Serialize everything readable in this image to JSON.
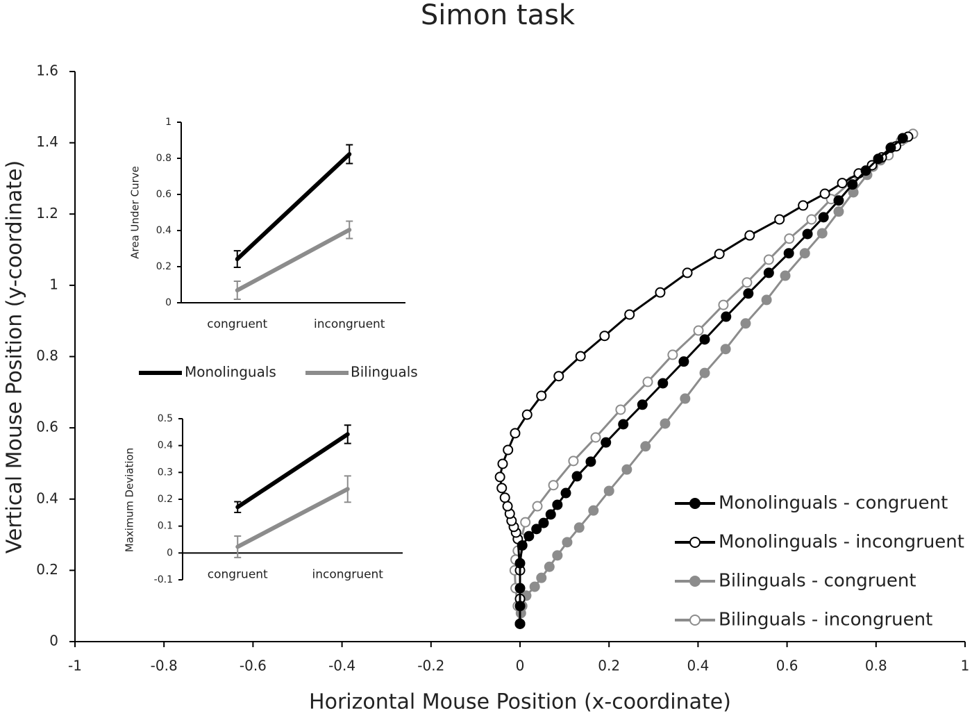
{
  "chart_data": [
    {
      "type": "line",
      "title": "Simon task",
      "xlabel": "Horizontal Mouse Position (x-coordinate)",
      "ylabel": "Vertical Mouse Position (y-coordinate)",
      "xlim": [
        -1,
        1
      ],
      "xticks": [
        -1,
        -0.8,
        -0.6,
        -0.4,
        -0.2,
        0,
        0.2,
        0.4,
        0.6,
        0.8,
        1
      ],
      "ylim": [
        0,
        1.6
      ],
      "yticks": [
        0,
        0.2,
        0.4,
        0.6,
        0.8,
        1,
        1.2,
        1.4,
        1.6
      ],
      "legend": "lower right",
      "series": [
        {
          "name": "Monolinguals - congruent",
          "color": "#000000",
          "marker": "filled",
          "x": [
            0,
            0,
            0,
            0,
            0.005,
            0.02,
            0.037,
            0.053,
            0.069,
            0.084,
            0.103,
            0.128,
            0.159,
            0.193,
            0.232,
            0.275,
            0.321,
            0.368,
            0.415,
            0.463,
            0.513,
            0.559,
            0.604,
            0.646,
            0.682,
            0.716,
            0.747,
            0.777,
            0.805,
            0.833,
            0.86
          ],
          "values": [
            0.05,
            0.1,
            0.15,
            0.22,
            0.27,
            0.296,
            0.316,
            0.333,
            0.357,
            0.384,
            0.417,
            0.464,
            0.505,
            0.559,
            0.61,
            0.665,
            0.725,
            0.786,
            0.848,
            0.912,
            0.977,
            1.035,
            1.09,
            1.144,
            1.191,
            1.238,
            1.283,
            1.322,
            1.355,
            1.386,
            1.413
          ]
        },
        {
          "name": "Monolinguals - incongruent",
          "color": "#000000",
          "marker": "open",
          "x": [
            0,
            0,
            0,
            -0.005,
            -0.009,
            -0.014,
            -0.019,
            -0.023,
            -0.028,
            -0.034,
            -0.041,
            -0.045,
            -0.039,
            -0.027,
            -0.011,
            0.016,
            0.048,
            0.087,
            0.136,
            0.19,
            0.246,
            0.315,
            0.376,
            0.448,
            0.516,
            0.583,
            0.636,
            0.685,
            0.724,
            0.761,
            0.791,
            0.813,
            0.845,
            0.872
          ],
          "values": [
            0.05,
            0.12,
            0.2,
            0.288,
            0.306,
            0.322,
            0.339,
            0.359,
            0.38,
            0.404,
            0.431,
            0.462,
            0.499,
            0.538,
            0.585,
            0.637,
            0.69,
            0.745,
            0.801,
            0.858,
            0.918,
            0.98,
            1.035,
            1.088,
            1.14,
            1.185,
            1.224,
            1.257,
            1.287,
            1.314,
            1.337,
            1.359,
            1.39,
            1.417
          ]
        },
        {
          "name": "Bilinguals - congruent",
          "color": "#8c8c8c",
          "marker": "filled",
          "x": [
            0,
            0.002,
            0.005,
            0.014,
            0.033,
            0.048,
            0.066,
            0.084,
            0.106,
            0.133,
            0.165,
            0.2,
            0.24,
            0.282,
            0.326,
            0.371,
            0.415,
            0.462,
            0.507,
            0.554,
            0.596,
            0.64,
            0.679,
            0.716,
            0.749,
            0.78,
            0.81,
            0.836,
            0.863
          ],
          "values": [
            0.05,
            0.08,
            0.1,
            0.129,
            0.154,
            0.179,
            0.21,
            0.242,
            0.279,
            0.32,
            0.368,
            0.423,
            0.483,
            0.548,
            0.612,
            0.682,
            0.754,
            0.821,
            0.893,
            0.959,
            1.027,
            1.09,
            1.146,
            1.207,
            1.261,
            1.31,
            1.351,
            1.388,
            1.411
          ]
        },
        {
          "name": "Bilinguals - incongruent",
          "color": "#8c8c8c",
          "marker": "open",
          "x": [
            0,
            -0.005,
            -0.01,
            -0.012,
            -0.01,
            -0.005,
            0.003,
            0.012,
            0.039,
            0.075,
            0.12,
            0.17,
            0.226,
            0.287,
            0.343,
            0.401,
            0.457,
            0.51,
            0.559,
            0.605,
            0.655,
            0.699,
            0.746,
            0.793,
            0.828,
            0.856,
            0.883
          ],
          "values": [
            0.05,
            0.1,
            0.15,
            0.2,
            0.23,
            0.255,
            0.29,
            0.335,
            0.38,
            0.439,
            0.507,
            0.573,
            0.651,
            0.729,
            0.805,
            0.873,
            0.945,
            1.008,
            1.072,
            1.131,
            1.185,
            1.242,
            1.292,
            1.333,
            1.365,
            1.405,
            1.425
          ]
        }
      ]
    },
    {
      "type": "errorline",
      "ylabel": "Area Under Curve",
      "categories": [
        "congruent",
        "incongruent"
      ],
      "ylim": [
        0,
        1
      ],
      "yticks": [
        0,
        0.2,
        0.4,
        0.6,
        0.8,
        1
      ],
      "series": [
        {
          "name": "Monolinguals",
          "color": "#000000",
          "values": [
            0.242,
            0.823
          ],
          "errors": [
            0.046,
            0.052
          ]
        },
        {
          "name": "Bilinguals",
          "color": "#8c8c8c",
          "values": [
            0.069,
            0.404
          ],
          "errors": [
            0.05,
            0.048
          ]
        }
      ]
    },
    {
      "type": "errorline",
      "ylabel": "Maximum Deviation",
      "categories": [
        "congruent",
        "incongruent"
      ],
      "ylim": [
        -0.1,
        0.5
      ],
      "yticks": [
        -0.1,
        0,
        0.1,
        0.2,
        0.3,
        0.4,
        0.5
      ],
      "series": [
        {
          "color": "#000000",
          "values": [
            0.171,
            0.442
          ],
          "errors": [
            0.02,
            0.034
          ]
        },
        {
          "color": "#8c8c8c",
          "values": [
            0.023,
            0.238
          ],
          "errors": [
            0.04,
            0.049
          ]
        }
      ]
    }
  ]
}
